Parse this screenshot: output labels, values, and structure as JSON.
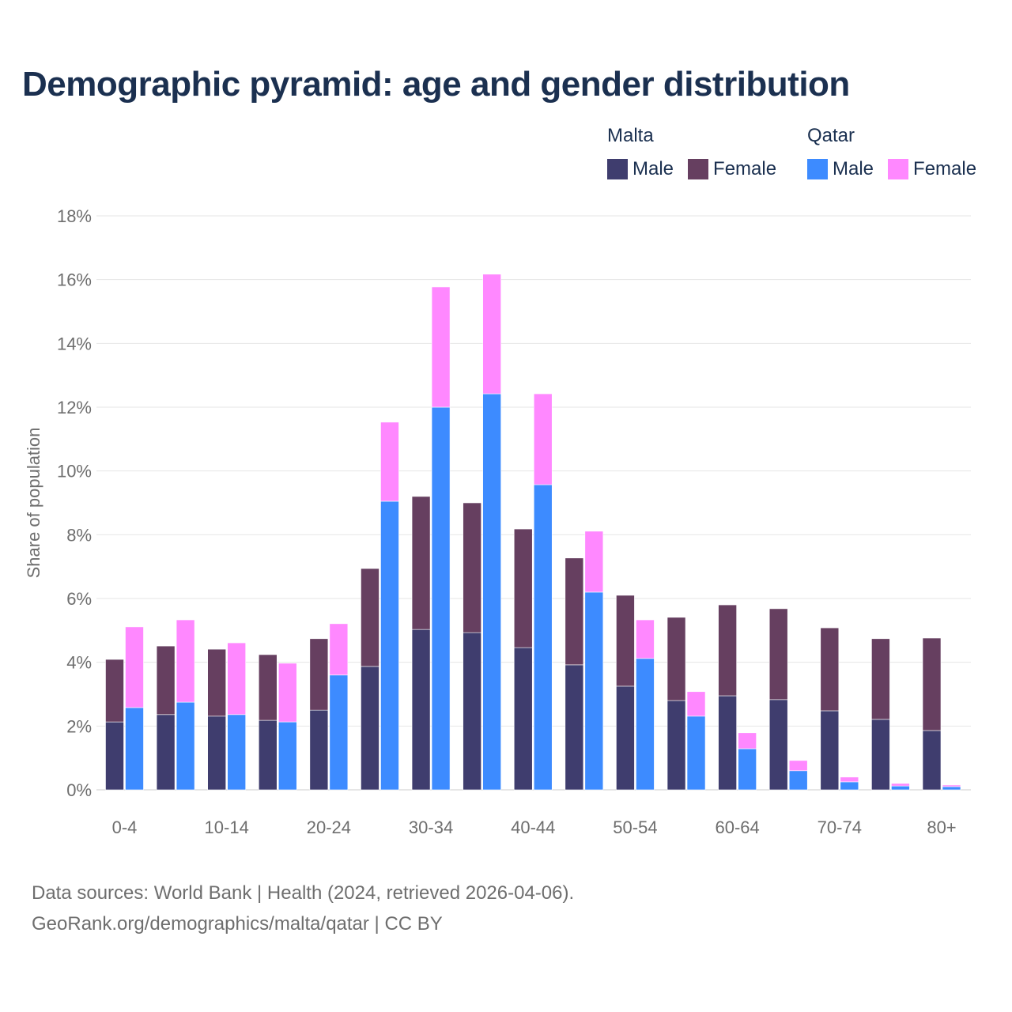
{
  "chart_data": {
    "type": "bar",
    "stacked": true,
    "title": "Demographic pyramid: age and gender distribution",
    "xlabel": "",
    "ylabel": "Share of population",
    "ylim": [
      0,
      18
    ],
    "yticks": [
      "0%",
      "2%",
      "4%",
      "6%",
      "8%",
      "10%",
      "12%",
      "14%",
      "16%",
      "18%"
    ],
    "grid": true,
    "legend_placement": "top-right",
    "categories": [
      "0-4",
      "5-9",
      "10-14",
      "15-19",
      "20-24",
      "25-29",
      "30-34",
      "35-39",
      "40-44",
      "45-49",
      "50-54",
      "55-59",
      "60-64",
      "65-69",
      "70-74",
      "75-79",
      "80+"
    ],
    "xtick_labels": [
      "0-4",
      "10-14",
      "20-24",
      "30-34",
      "40-44",
      "50-54",
      "60-64",
      "70-74",
      "80+"
    ],
    "countries": [
      {
        "name": "Malta",
        "series": [
          {
            "name": "Male",
            "color": "#3f3d6e",
            "values": [
              2.13,
              2.36,
              2.31,
              2.18,
              2.5,
              3.87,
              5.03,
              4.93,
              4.46,
              3.92,
              3.25,
              2.8,
              2.95,
              2.83,
              2.48,
              2.21,
              1.86
            ]
          },
          {
            "name": "Female",
            "color": "#663f60",
            "values": [
              1.96,
              2.15,
              2.1,
              2.06,
              2.24,
              3.07,
              4.17,
              4.07,
              3.72,
              3.35,
              2.85,
              2.61,
              2.85,
              2.85,
              2.6,
              2.53,
              2.9
            ]
          }
        ]
      },
      {
        "name": "Qatar",
        "series": [
          {
            "name": "Male",
            "color": "#3d8bff",
            "values": [
              2.58,
              2.75,
              2.36,
              2.13,
              3.6,
              9.05,
              12.0,
              12.42,
              9.57,
              6.2,
              4.12,
              2.31,
              1.29,
              0.6,
              0.25,
              0.12,
              0.1
            ]
          },
          {
            "name": "Female",
            "color": "#ff88ff",
            "values": [
              2.53,
              2.58,
              2.25,
              1.84,
              1.61,
              2.48,
              3.77,
              3.75,
              2.85,
              1.91,
              1.21,
              0.77,
              0.5,
              0.32,
              0.15,
              0.08,
              0.05
            ]
          }
        ]
      }
    ]
  },
  "footer": {
    "source": "Data sources: World Bank | Health (2024, retrieved 2026-04-06).",
    "credit": "GeoRank.org/demographics/malta/qatar | CC BY"
  }
}
